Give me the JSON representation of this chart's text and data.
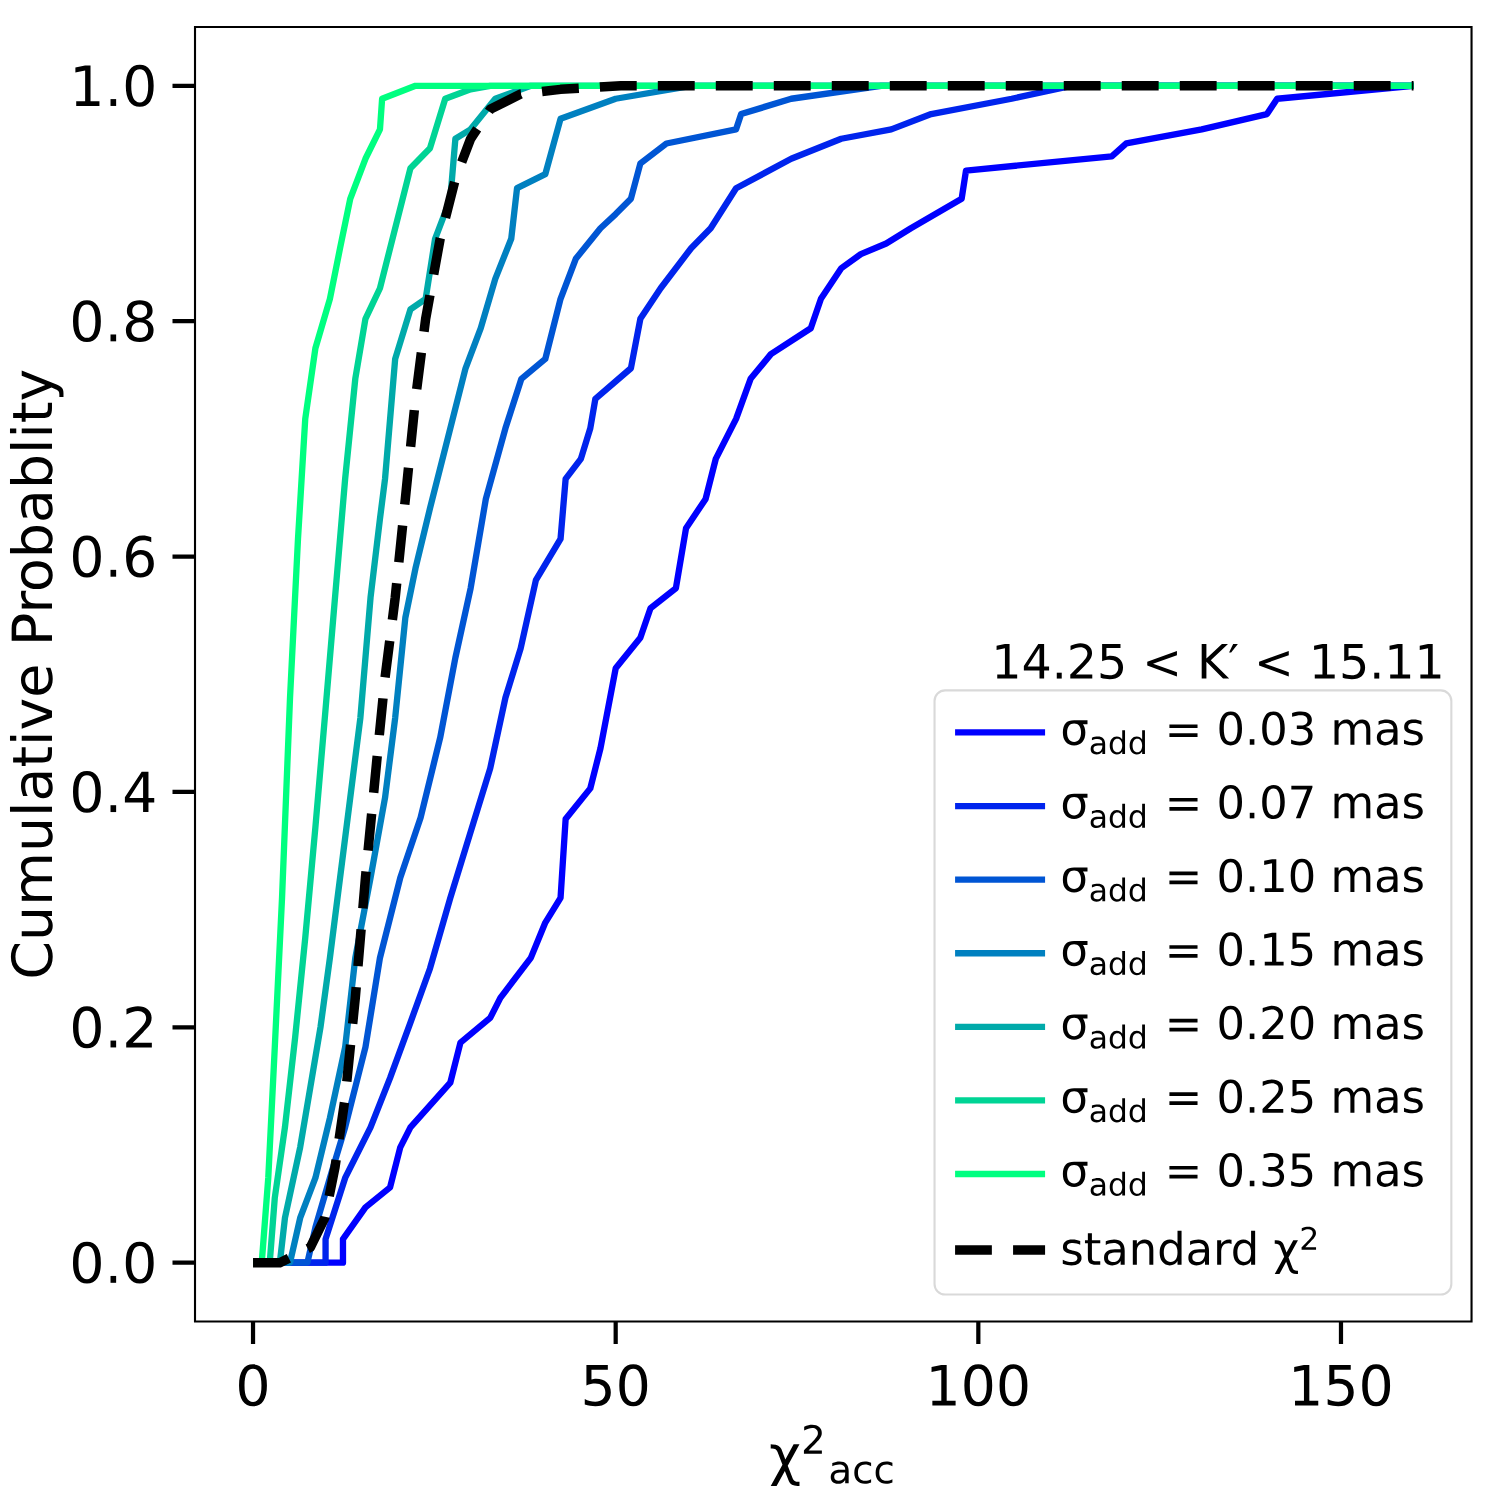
{
  "chart_data": {
    "type": "line",
    "xlabel": "χ$^{2}$$_{acc}$",
    "ylabel": "Cumulative Probablity",
    "annotations": [
      "14.25 < K′ < 15.11"
    ],
    "xlim": [
      -8,
      168
    ],
    "ylim": [
      -0.05,
      1.05
    ],
    "xticks": [
      0,
      50,
      100,
      150
    ],
    "yticks": [
      {
        "value": 0,
        "label": "0.0"
      },
      {
        "value": 0.2,
        "label": "0.2"
      },
      {
        "value": 0.4,
        "label": "0.4"
      },
      {
        "value": 0.6,
        "label": "0.6"
      },
      {
        "value": 0.8,
        "label": "0.8"
      },
      {
        "value": 1.0,
        "label": "1.0"
      }
    ],
    "grid": false,
    "legend": "bottom right",
    "marker": "none",
    "series": [
      {
        "name": "σ$_{add}$ = 0.03  mas",
        "color": "#0000ff",
        "x": [
          0,
          12.4,
          12.4,
          15.5,
          18.9,
          20.3,
          21.7,
          27.2,
          28.6,
          32.7,
          34.1,
          38.3,
          40.3,
          42.4,
          43.1,
          46.5,
          47.9,
          50,
          53.4,
          54.8,
          58.3,
          59.7,
          62.4,
          63.8,
          66.6,
          68.6,
          71.4,
          76.9,
          78.3,
          81.1,
          83.8,
          87.3,
          90.7,
          97.7,
          98.3,
          118.4,
          120.4,
          130.8,
          139.8,
          141.2,
          160
        ],
        "values": [
          0,
          0,
          0.02,
          0.047,
          0.064,
          0.098,
          0.115,
          0.153,
          0.187,
          0.208,
          0.225,
          0.259,
          0.289,
          0.31,
          0.377,
          0.403,
          0.437,
          0.505,
          0.531,
          0.556,
          0.573,
          0.624,
          0.649,
          0.683,
          0.717,
          0.751,
          0.772,
          0.794,
          0.819,
          0.845,
          0.857,
          0.866,
          0.879,
          0.904,
          0.928,
          0.94,
          0.951,
          0.963,
          0.976,
          0.989,
          1.0
        ]
      },
      {
        "name": "σ$_{add}$ = 0.07  mas",
        "color": "#0024ed",
        "x": [
          0,
          10,
          10,
          12.7,
          16.2,
          18.9,
          21.7,
          24.4,
          27.2,
          29.3,
          32.7,
          34.8,
          36.9,
          39,
          42.4,
          43.1,
          45.2,
          46.5,
          47.2,
          52.1,
          53.4,
          56.2,
          60.4,
          63.1,
          66.6,
          74.2,
          81.1,
          88,
          93.5,
          104.6,
          112.8,
          160
        ],
        "values": [
          0,
          0,
          0.02,
          0.072,
          0.115,
          0.157,
          0.204,
          0.25,
          0.31,
          0.352,
          0.42,
          0.48,
          0.522,
          0.58,
          0.615,
          0.666,
          0.683,
          0.709,
          0.734,
          0.76,
          0.802,
          0.828,
          0.862,
          0.879,
          0.913,
          0.938,
          0.955,
          0.963,
          0.976,
          0.989,
          1.0,
          1.0
        ]
      },
      {
        "name": "σ$_{add}$ = 0.10  mas",
        "color": "#0055d4",
        "x": [
          0,
          7.5,
          8.6,
          10.6,
          12.7,
          15.5,
          17.5,
          20.3,
          23.1,
          25.8,
          27.9,
          30,
          32.1,
          34.8,
          37,
          40.3,
          42.4,
          44.5,
          47.9,
          50,
          52.1,
          53.4,
          57,
          66.6,
          67.3,
          74.2,
          86.6,
          160
        ],
        "values": [
          0,
          0,
          0.03,
          0.072,
          0.115,
          0.183,
          0.259,
          0.327,
          0.378,
          0.446,
          0.514,
          0.573,
          0.649,
          0.709,
          0.751,
          0.768,
          0.819,
          0.853,
          0.879,
          0.891,
          0.904,
          0.934,
          0.951,
          0.963,
          0.976,
          0.989,
          1.0,
          1.0
        ]
      },
      {
        "name": "σ$_{add}$ = 0.15  mas",
        "color": "#0080c0",
        "x": [
          0,
          5.1,
          6.5,
          8.6,
          10.6,
          12.7,
          14.1,
          16.2,
          18.2,
          19.6,
          21,
          22.4,
          24.4,
          27.2,
          29.3,
          31.4,
          33.4,
          35.6,
          36.4,
          40.3,
          42.4,
          50,
          60.4,
          160
        ],
        "values": [
          0,
          0,
          0.038,
          0.072,
          0.123,
          0.183,
          0.259,
          0.327,
          0.395,
          0.463,
          0.548,
          0.59,
          0.641,
          0.709,
          0.76,
          0.794,
          0.836,
          0.87,
          0.913,
          0.925,
          0.972,
          0.989,
          1.0,
          1.0
        ]
      },
      {
        "name": "σ$_{add}$ = 0.20  mas",
        "color": "#00aaaa",
        "x": [
          0,
          3.7,
          4.4,
          6.5,
          7.9,
          9.3,
          10.6,
          12,
          13.4,
          14.8,
          16.2,
          17.5,
          18.2,
          19.6,
          21.7,
          23.8,
          25.1,
          27.2,
          27.9,
          30,
          33.4,
          38.3,
          160
        ],
        "values": [
          0,
          0,
          0.038,
          0.098,
          0.149,
          0.2,
          0.259,
          0.327,
          0.395,
          0.463,
          0.565,
          0.632,
          0.666,
          0.768,
          0.81,
          0.819,
          0.87,
          0.904,
          0.955,
          0.963,
          0.989,
          1.0,
          1.0
        ]
      },
      {
        "name": "σ$_{add}$ = 0.25  mas",
        "color": "#00d495",
        "x": [
          0,
          2.3,
          3,
          4.4,
          5.8,
          7.2,
          8.6,
          9.9,
          11.3,
          12.7,
          14.1,
          15.5,
          17.5,
          19.6,
          21.7,
          24.4,
          26.5,
          30,
          32.7,
          160
        ],
        "values": [
          0,
          0,
          0.055,
          0.115,
          0.191,
          0.276,
          0.37,
          0.463,
          0.565,
          0.666,
          0.751,
          0.802,
          0.828,
          0.879,
          0.93,
          0.947,
          0.989,
          0.997,
          1.0,
          1.0
        ]
      },
      {
        "name": "σ$_{add}$ = 0.35  mas",
        "color": "#00ff80",
        "x": [
          0,
          1.2,
          2.1,
          3,
          4,
          5.1,
          6.2,
          7.2,
          8.6,
          10.6,
          12,
          13.4,
          15.5,
          17.5,
          17.8,
          22.4,
          160
        ],
        "values": [
          0,
          0,
          0.072,
          0.183,
          0.31,
          0.48,
          0.615,
          0.717,
          0.777,
          0.819,
          0.862,
          0.904,
          0.938,
          0.963,
          0.989,
          1.0,
          1.0
        ]
      },
      {
        "name": "standard χ$^{2}$",
        "color": "#000000",
        "line_style": "dashed",
        "x": [
          0,
          3.7,
          7.9,
          9.9,
          11.3,
          12.7,
          14.1,
          15.5,
          17.1,
          18.2,
          19.6,
          21,
          22.4,
          23.8,
          25.8,
          27.9,
          30,
          32.7,
          36.9,
          42.4,
          50.7,
          160
        ],
        "values": [
          0,
          0,
          0.013,
          0.038,
          0.081,
          0.14,
          0.225,
          0.327,
          0.429,
          0.497,
          0.565,
          0.649,
          0.734,
          0.802,
          0.87,
          0.921,
          0.955,
          0.98,
          0.993,
          0.997,
          1.0,
          1.0
        ]
      }
    ]
  }
}
